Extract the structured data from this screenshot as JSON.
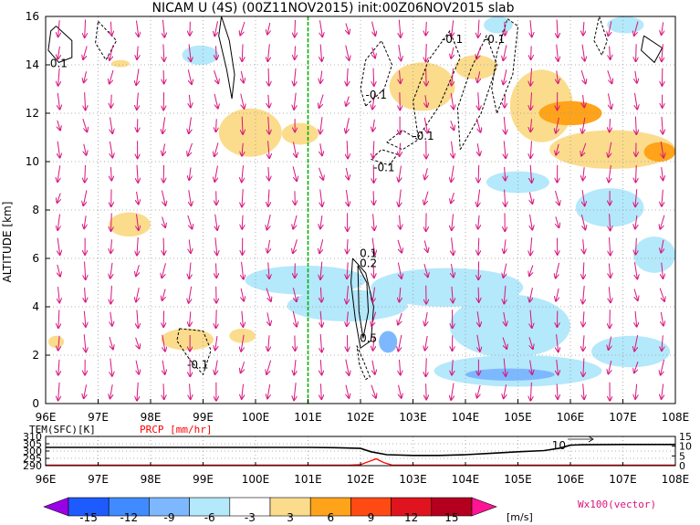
{
  "chart_data": [
    {
      "type": "contour-vector-section",
      "title": "NICAM U (4S) (00Z11NOV2015) init:00Z06NOV2015 slab",
      "xlabel": "",
      "ylabel": "ALTITUDE [km]",
      "x_ticks": [
        "96E",
        "97E",
        "98E",
        "99E",
        "100E",
        "101E",
        "102E",
        "103E",
        "104E",
        "105E",
        "106E",
        "107E",
        "108E"
      ],
      "x_range": [
        96,
        108
      ],
      "y_ticks": [
        "0",
        "2",
        "4",
        "6",
        "8",
        "10",
        "12",
        "14",
        "16"
      ],
      "y_range": [
        0,
        16
      ],
      "marker_longitude": 101,
      "grid": true,
      "contour_labels": [
        {
          "text": "0.1",
          "lon": 96.25,
          "alt": 13.9
        },
        {
          "text": "-0.1",
          "lon": 103.75,
          "alt": 14.9
        },
        {
          "text": "-0.1",
          "lon": 104.55,
          "alt": 14.9
        },
        {
          "text": "-0.1",
          "lon": 102.3,
          "alt": 12.6
        },
        {
          "text": "-0.1",
          "lon": 103.2,
          "alt": 10.9
        },
        {
          "text": "-0.1",
          "lon": 102.45,
          "alt": 9.6
        },
        {
          "text": "0.1",
          "lon": 102.15,
          "alt": 6.05
        },
        {
          "text": "0.2",
          "lon": 102.15,
          "alt": 5.65
        },
        {
          "text": "0.5",
          "lon": 102.15,
          "alt": 2.55
        },
        {
          "text": "-0.1",
          "lon": 98.9,
          "alt": 1.45
        }
      ],
      "shaded_regions": [
        {
          "lon": [
            102.55,
            103.8
          ],
          "alt": [
            12.1,
            14.1
          ],
          "value": 3
        },
        {
          "lon": [
            103.8,
            104.6
          ],
          "alt": [
            13.4,
            14.4
          ],
          "value": 3
        },
        {
          "lon": [
            104.85,
            106.05
          ],
          "alt": [
            10.8,
            13.8
          ],
          "value": 3
        },
        {
          "lon": [
            105.4,
            106.6
          ],
          "alt": [
            11.5,
            12.5
          ],
          "value": 6
        },
        {
          "lon": [
            105.6,
            108
          ],
          "alt": [
            9.7,
            11.3
          ],
          "value": 3
        },
        {
          "lon": [
            107.4,
            108
          ],
          "alt": [
            10.0,
            10.8
          ],
          "value": 6
        },
        {
          "lon": [
            99.3,
            100.5
          ],
          "alt": [
            10.2,
            12.2
          ],
          "value": 3
        },
        {
          "lon": [
            100.5,
            101.2
          ],
          "alt": [
            10.7,
            11.6
          ],
          "value": 3
        },
        {
          "lon": [
            97.25,
            97.6
          ],
          "alt": [
            13.9,
            14.2
          ],
          "value": 3
        },
        {
          "lon": [
            97.2,
            98.0
          ],
          "alt": [
            6.9,
            7.9
          ],
          "value": 3
        },
        {
          "lon": [
            98.2,
            99.2
          ],
          "alt": [
            2.2,
            3.1
          ],
          "value": 3
        },
        {
          "lon": [
            99.5,
            100.0
          ],
          "alt": [
            2.5,
            3.1
          ],
          "value": 3
        },
        {
          "lon": [
            96.05,
            96.35
          ],
          "alt": [
            2.3,
            2.8
          ],
          "value": 3
        },
        {
          "lon": [
            99.8,
            102.1
          ],
          "alt": [
            4.5,
            5.7
          ],
          "value": -3
        },
        {
          "lon": [
            100.6,
            102.9
          ],
          "alt": [
            3.4,
            4.7
          ],
          "value": -3
        },
        {
          "lon": [
            102.2,
            105.1
          ],
          "alt": [
            4.0,
            5.6
          ],
          "value": -3
        },
        {
          "lon": [
            103.7,
            106.0
          ],
          "alt": [
            1.9,
            4.5
          ],
          "value": -3
        },
        {
          "lon": [
            102.35,
            102.7
          ],
          "alt": [
            2.1,
            3.0
          ],
          "value": -6
        },
        {
          "lon": [
            103.4,
            106.6
          ],
          "alt": [
            0.7,
            2.0
          ],
          "value": -3
        },
        {
          "lon": [
            104.0,
            105.7
          ],
          "alt": [
            0.95,
            1.45
          ],
          "value": -6
        },
        {
          "lon": [
            106.4,
            107.9
          ],
          "alt": [
            1.5,
            2.8
          ],
          "value": -3
        },
        {
          "lon": [
            106.1,
            107.4
          ],
          "alt": [
            7.3,
            8.9
          ],
          "value": -3
        },
        {
          "lon": [
            107.2,
            108.0
          ],
          "alt": [
            5.4,
            6.9
          ],
          "value": -3
        },
        {
          "lon": [
            104.4,
            105.6
          ],
          "alt": [
            8.7,
            9.6
          ],
          "value": -3
        },
        {
          "lon": [
            98.6,
            99.3
          ],
          "alt": [
            14.0,
            14.8
          ],
          "value": -3
        },
        {
          "lon": [
            104.35,
            104.9
          ],
          "alt": [
            15.3,
            16.0
          ],
          "value": -3
        },
        {
          "lon": [
            106.7,
            107.4
          ],
          "alt": [
            15.3,
            16.0
          ],
          "value": -3
        }
      ]
    },
    {
      "type": "line",
      "left_axis_label": "TEM(SFC)[K]",
      "right_axis_label": "PRCP [mm/hr]",
      "x_range": [
        96,
        108
      ],
      "x_ticks": [
        "96E",
        "97E",
        "98E",
        "99E",
        "100E",
        "101E",
        "102E",
        "103E",
        "104E",
        "105E",
        "106E",
        "107E",
        "108E"
      ],
      "left_ticks": [
        "310",
        "305",
        "300",
        "295",
        "290"
      ],
      "left_range": [
        290,
        310
      ],
      "right_ticks": [
        "15",
        "10",
        "5",
        "0"
      ],
      "right_range": [
        0,
        15
      ],
      "series": [
        {
          "name": "TEM(SFC)[K]",
          "color": "#000000",
          "x": [
            96,
            97,
            98,
            99,
            100,
            101,
            101.5,
            102,
            102.2,
            102.5,
            103,
            103.5,
            104,
            104.5,
            105,
            105.5,
            105.8,
            106,
            106.2,
            107,
            108
          ],
          "y": [
            302.5,
            302.5,
            302.5,
            302.5,
            302.5,
            302.5,
            302.3,
            301.8,
            299.5,
            297.5,
            297.0,
            297.0,
            297.5,
            298.5,
            299.5,
            300.3,
            302.0,
            304.0,
            304.3,
            304.5,
            304.5
          ]
        },
        {
          "name": "PRCP [mm/hr]",
          "color": "#ff0000",
          "x": [
            96,
            101.8,
            102.0,
            102.15,
            102.3,
            102.45,
            102.6,
            108
          ],
          "y": [
            0.3,
            0.3,
            0.5,
            2.0,
            3.5,
            1.5,
            0.3,
            0.3
          ]
        }
      ],
      "annotation": "10"
    }
  ],
  "colorbar": {
    "ticks": [
      "-15",
      "-12",
      "-9",
      "-6",
      "-3",
      "3",
      "6",
      "9",
      "12",
      "15"
    ],
    "unit": "[m/s]",
    "colors": [
      "#9a00e6",
      "#1e5bff",
      "#3f8bff",
      "#7db8ff",
      "#b4e8fb",
      "#ffffff",
      "#fbdc8c",
      "#ffa31a",
      "#ff4a14",
      "#e0141e",
      "#b4001e",
      "#ff1493"
    ]
  },
  "vector_note": "Wx100(vector)",
  "colors": {
    "vector": "#d8147c",
    "shade_neg": "#b4e8fb",
    "shade_neg2": "#7db8ff",
    "shade_pos": "#fbdc8c",
    "shade_pos2": "#ffa31a",
    "marker_line": "#00b400",
    "prcp": "#ff0000"
  }
}
